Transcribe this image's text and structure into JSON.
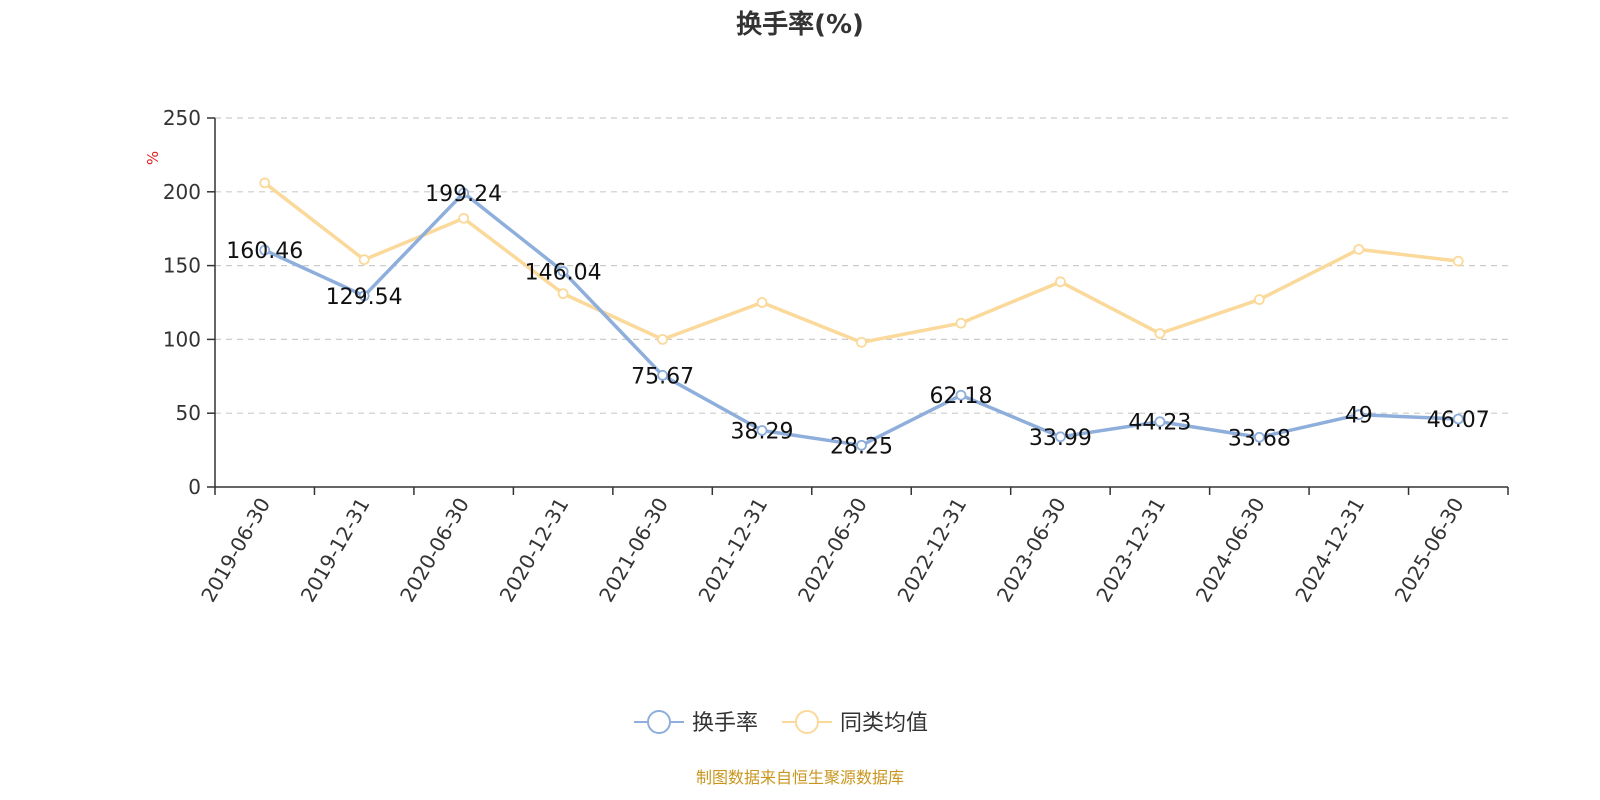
{
  "chart_data": {
    "type": "line",
    "title": "换手率(%)",
    "ylabel": "%",
    "xlabel": "",
    "categories": [
      "2019-06-30",
      "2019-12-31",
      "2020-06-30",
      "2020-12-31",
      "2021-06-30",
      "2021-12-31",
      "2022-06-30",
      "2022-12-31",
      "2023-06-30",
      "2023-12-31",
      "2024-06-30",
      "2024-12-31",
      "2025-06-30"
    ],
    "ylim": [
      0,
      250
    ],
    "yticks": [
      "0",
      "50",
      "100",
      "150",
      "200",
      "250"
    ],
    "grid": true,
    "legend_position": "bottom",
    "series": [
      {
        "name": "换手率",
        "color": "#8eaedb",
        "values": [
          160.46,
          129.54,
          199.24,
          146.04,
          75.67,
          38.29,
          28.25,
          62.18,
          33.99,
          44.23,
          33.68,
          49,
          46.07
        ],
        "labels": [
          "160.46",
          "129.54",
          "199.24",
          "146.04",
          "75.67",
          "38.29",
          "28.25",
          "62.18",
          "33.99",
          "44.23",
          "33.68",
          "49",
          "46.07"
        ]
      },
      {
        "name": "同类均值",
        "color": "#fad99a",
        "values": [
          206,
          154,
          182,
          131,
          100,
          125,
          98,
          111,
          139,
          104,
          127,
          161,
          153
        ]
      }
    ]
  },
  "footer": "制图数据来自恒生聚源数据库",
  "colors": {
    "ylabel": "#e02020",
    "axis": "#333333",
    "grid": "#cccccc",
    "footer": "#c8961e"
  }
}
